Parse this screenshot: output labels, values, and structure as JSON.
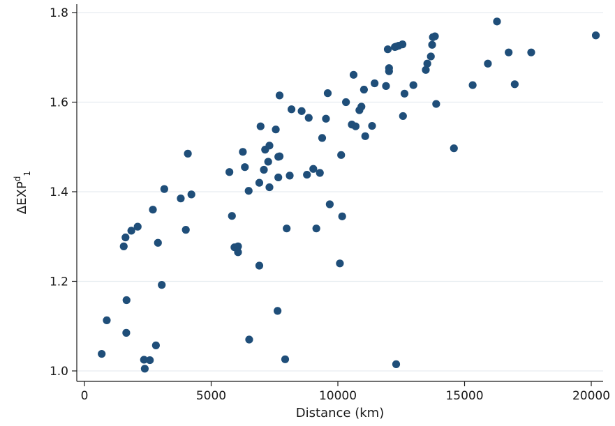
{
  "chart_data": {
    "type": "scatter",
    "title": "",
    "xlabel": "Distance (km)",
    "ylabel": {
      "base": "ΔEXP",
      "superscript": "d",
      "subscript": "1"
    },
    "xlim": [
      -300,
      20500
    ],
    "ylim": [
      0.975,
      1.82
    ],
    "xticks": [
      0,
      5000,
      10000,
      15000,
      20000
    ],
    "xtick_labels": [
      "0",
      "5000",
      "10000",
      "15000",
      "20000"
    ],
    "yticks": [
      1.0,
      1.2,
      1.4,
      1.6,
      1.8
    ],
    "ytick_labels": [
      "1.0",
      "1.2",
      "1.4",
      "1.6",
      "1.8"
    ],
    "grid": "horizontal",
    "marker_color": "#1f4e79",
    "gridline_color": "#e6ecf0",
    "points": [
      [
        680,
        1.038
      ],
      [
        880,
        1.113
      ],
      [
        1550,
        1.278
      ],
      [
        1620,
        1.298
      ],
      [
        1660,
        1.158
      ],
      [
        1650,
        1.085
      ],
      [
        1850,
        1.313
      ],
      [
        2100,
        1.322
      ],
      [
        2350,
        1.025
      ],
      [
        2380,
        1.005
      ],
      [
        2580,
        1.024
      ],
      [
        2700,
        1.36
      ],
      [
        2820,
        1.057
      ],
      [
        2900,
        1.286
      ],
      [
        3050,
        1.192
      ],
      [
        3150,
        1.406
      ],
      [
        3800,
        1.385
      ],
      [
        4000,
        1.315
      ],
      [
        4080,
        1.485
      ],
      [
        4220,
        1.394
      ],
      [
        5720,
        1.444
      ],
      [
        5820,
        1.346
      ],
      [
        5920,
        1.276
      ],
      [
        6060,
        1.278
      ],
      [
        6060,
        1.265
      ],
      [
        6250,
        1.489
      ],
      [
        6330,
        1.455
      ],
      [
        6480,
        1.402
      ],
      [
        6500,
        1.07
      ],
      [
        6900,
        1.42
      ],
      [
        6900,
        1.235
      ],
      [
        6950,
        1.546
      ],
      [
        7080,
        1.449
      ],
      [
        7130,
        1.494
      ],
      [
        7250,
        1.467
      ],
      [
        7300,
        1.41
      ],
      [
        7300,
        1.503
      ],
      [
        7550,
        1.539
      ],
      [
        7650,
        1.478
      ],
      [
        7700,
        1.479
      ],
      [
        7650,
        1.432
      ],
      [
        7620,
        1.134
      ],
      [
        7700,
        1.615
      ],
      [
        7920,
        1.026
      ],
      [
        7980,
        1.318
      ],
      [
        8100,
        1.436
      ],
      [
        8170,
        1.584
      ],
      [
        8570,
        1.58
      ],
      [
        8780,
        1.438
      ],
      [
        8850,
        1.565
      ],
      [
        9030,
        1.451
      ],
      [
        9150,
        1.318
      ],
      [
        9290,
        1.442
      ],
      [
        9380,
        1.52
      ],
      [
        9530,
        1.563
      ],
      [
        9600,
        1.62
      ],
      [
        9680,
        1.372
      ],
      [
        10080,
        1.24
      ],
      [
        10130,
        1.482
      ],
      [
        10170,
        1.345
      ],
      [
        10320,
        1.6
      ],
      [
        10550,
        1.55
      ],
      [
        10620,
        1.661
      ],
      [
        10700,
        1.546
      ],
      [
        10850,
        1.582
      ],
      [
        10930,
        1.59
      ],
      [
        11030,
        1.628
      ],
      [
        11080,
        1.524
      ],
      [
        11350,
        1.547
      ],
      [
        11450,
        1.642
      ],
      [
        11900,
        1.636
      ],
      [
        11970,
        1.718
      ],
      [
        12020,
        1.676
      ],
      [
        12020,
        1.669
      ],
      [
        12250,
        1.723
      ],
      [
        12300,
        1.724
      ],
      [
        12300,
        1.015
      ],
      [
        12400,
        1.726
      ],
      [
        12550,
        1.729
      ],
      [
        12570,
        1.569
      ],
      [
        12630,
        1.619
      ],
      [
        12980,
        1.638
      ],
      [
        13470,
        1.672
      ],
      [
        13530,
        1.686
      ],
      [
        13670,
        1.702
      ],
      [
        13720,
        1.728
      ],
      [
        13750,
        1.745
      ],
      [
        13830,
        1.747
      ],
      [
        13880,
        1.596
      ],
      [
        14580,
        1.497
      ],
      [
        15320,
        1.638
      ],
      [
        15920,
        1.686
      ],
      [
        16280,
        1.78
      ],
      [
        16740,
        1.711
      ],
      [
        16980,
        1.64
      ],
      [
        17630,
        1.711
      ],
      [
        20180,
        1.749
      ]
    ]
  }
}
